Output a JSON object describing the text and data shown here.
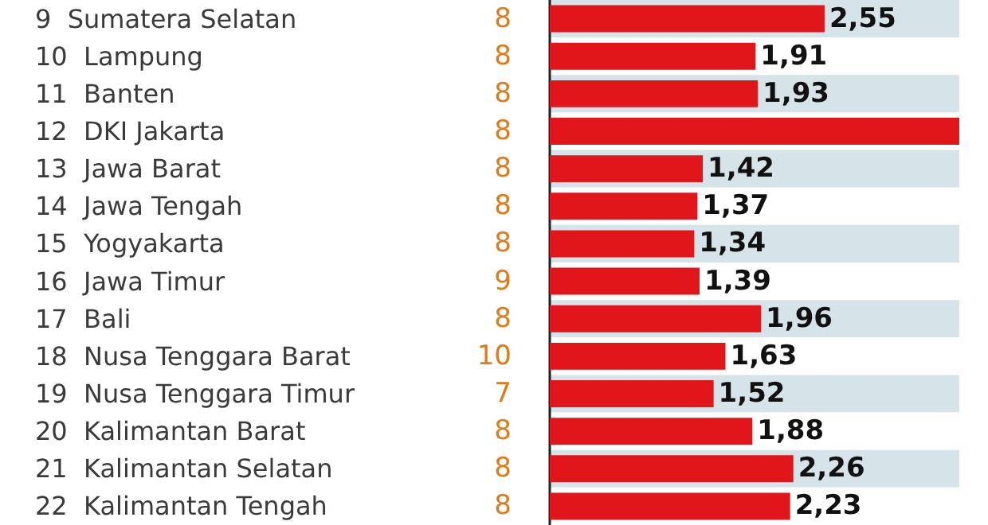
{
  "chart_data": {
    "type": "bar",
    "orientation": "horizontal",
    "categories": [
      "9  Sumatera Selatan",
      "10  Lampung",
      "11  Banten",
      "12  DKI Jakarta",
      "13  Jawa Barat",
      "14  Jawa Tengah",
      "15  Yogyakarta",
      "16  Jawa Timur",
      "17  Bali",
      "18  Nusa Tenggara Barat",
      "19  Nusa Tenggara Timur",
      "20  Kalimantan Barat",
      "21  Kalimantan Selatan",
      "22  Kalimantan Tengah"
    ],
    "series": [
      {
        "color": "#e0161b",
        "values": [
          2.55,
          1.91,
          1.93,
          3.8,
          1.42,
          1.37,
          1.34,
          1.39,
          1.96,
          1.63,
          1.52,
          1.88,
          2.26,
          2.23
        ],
        "value_labels": [
          "2,55",
          "1,91",
          "1,93",
          null,
          "1,42",
          "1,37",
          "1,34",
          "1,39",
          "1,96",
          "1,63",
          "1,52",
          "1,88",
          "2,26",
          "2,23"
        ]
      }
    ],
    "annotations": [
      "8",
      "8",
      "8",
      "8",
      "8",
      "8",
      "8",
      "9",
      "8",
      "10",
      "7",
      "8",
      "8",
      "8"
    ],
    "tick_labels": "y"
  }
}
